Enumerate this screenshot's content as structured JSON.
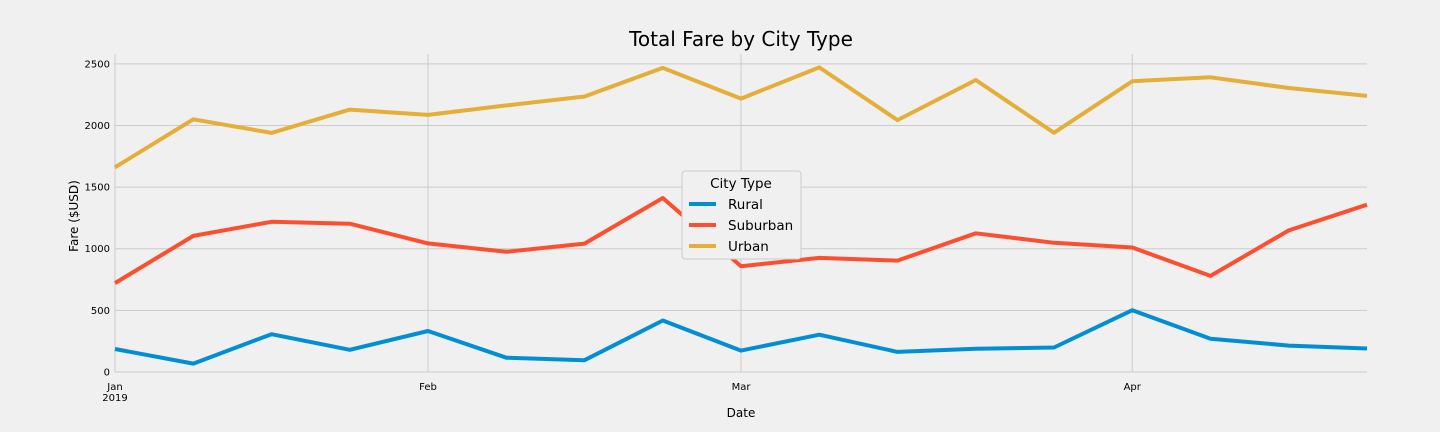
{
  "chart_data": {
    "type": "line",
    "title": "Total Fare by City Type",
    "xlabel": "Date",
    "ylabel": "Fare ($USD)",
    "x": [
      "2019-01-06",
      "2019-01-13",
      "2019-01-20",
      "2019-01-27",
      "2019-02-03",
      "2019-02-10",
      "2019-02-17",
      "2019-02-24",
      "2019-03-03",
      "2019-03-10",
      "2019-03-17",
      "2019-03-24",
      "2019-03-31",
      "2019-04-07",
      "2019-04-14",
      "2019-04-21",
      "2019-04-28"
    ],
    "xlim": [
      "2019-01-06",
      "2019-04-28"
    ],
    "ylim": [
      0,
      2580
    ],
    "yticks": [
      0,
      500,
      1000,
      1500,
      2000,
      2500
    ],
    "xticks": [
      {
        "date": "2019-01-06",
        "label": "Jan",
        "sublabel": "2019"
      },
      {
        "date": "2019-02-03",
        "label": "Feb",
        "sublabel": ""
      },
      {
        "date": "2019-03-03",
        "label": "Mar",
        "sublabel": ""
      },
      {
        "date": "2019-04-07",
        "label": "Apr",
        "sublabel": ""
      }
    ],
    "grid": true,
    "legend": {
      "title": "City Type",
      "placement": "center"
    },
    "series": [
      {
        "name": "Rural",
        "color": "#008fd5",
        "values": [
          187,
          68,
          307,
          180,
          333,
          116,
          96,
          418,
          174,
          303,
          163,
          189,
          199,
          501,
          270,
          214,
          191
        ]
      },
      {
        "name": "Suburban",
        "color": "#fc4f30",
        "values": [
          721,
          1104,
          1219,
          1203,
          1043,
          975,
          1042,
          1412,
          858,
          926,
          904,
          1125,
          1048,
          1010,
          780,
          1149,
          1357
        ]
      },
      {
        "name": "Urban",
        "color": "#e5ae38",
        "values": [
          1661,
          2050,
          1940,
          2129,
          2086,
          2163,
          2235,
          2467,
          2218,
          2471,
          2044,
          2369,
          1941,
          2359,
          2391,
          2304,
          2240
        ]
      }
    ]
  }
}
